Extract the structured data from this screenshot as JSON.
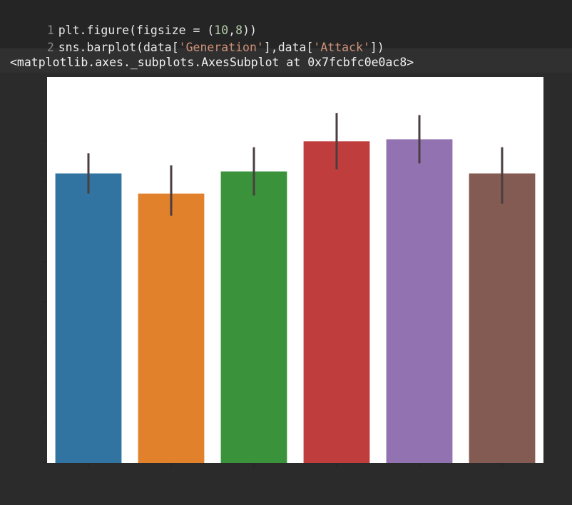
{
  "code": {
    "line1": {
      "num": "1",
      "pre": "plt.figure(figsize = (",
      "a": "10",
      "sep": ",",
      "b": "8",
      "post": "))"
    },
    "line2": {
      "num": "2",
      "pre": "sns.barplot(data[",
      "s1": "'Generation'",
      "mid": "],data[",
      "s2": "'Attack'",
      "post": "])"
    }
  },
  "output": {
    "repr": "<matplotlib.axes._subplots.AxesSubplot at 0x7fcbfc0e0ac8>"
  },
  "chart_data": {
    "type": "bar",
    "title": "",
    "xlabel": "",
    "ylabel": "",
    "categories": [
      "",
      "",
      "",
      "",
      "",
      ""
    ],
    "values": [
      72,
      67,
      72.5,
      80,
      80.5,
      72
    ],
    "err_low": [
      67,
      61.5,
      66.5,
      73,
      74.5,
      64.5
    ],
    "err_high": [
      77,
      74,
      78.5,
      87,
      86.5,
      78.5
    ],
    "ylim": [
      0,
      96
    ],
    "colors": [
      "#3274a1",
      "#e1812c",
      "#3a923a",
      "#c03d3e",
      "#9372b2",
      "#845b53"
    ],
    "error_color": "#4a3e42",
    "background": "#ffffff",
    "grid": false
  }
}
